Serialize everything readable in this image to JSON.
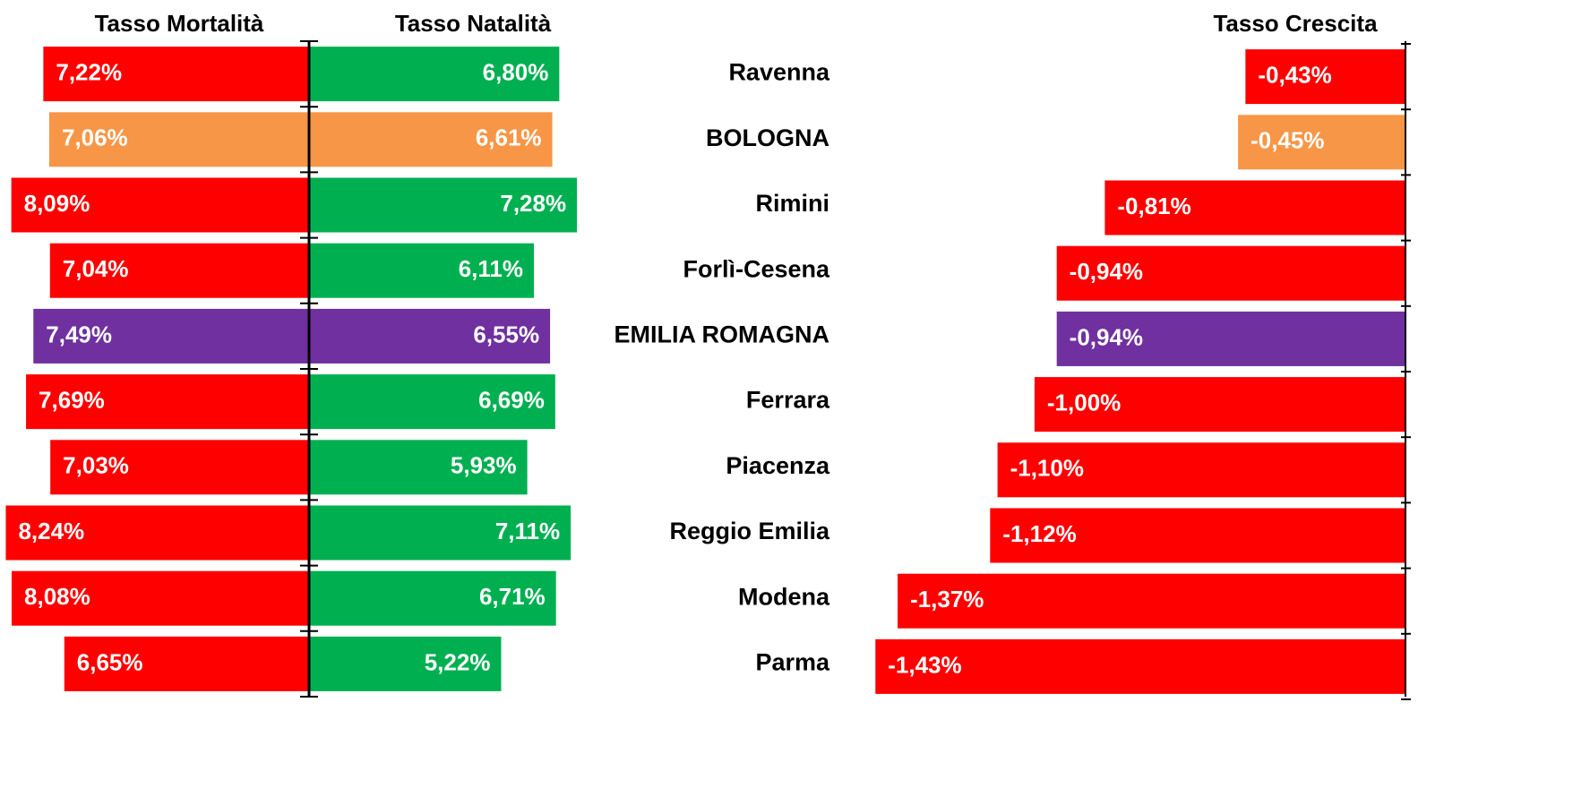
{
  "chart_data": {
    "type": "bar",
    "orientation": "horizontal",
    "categories": [
      "Ravenna",
      "BOLOGNA",
      "Rimini",
      "Forlì-Cesena",
      "EMILIA ROMAGNA",
      "Ferrara",
      "Piacenza",
      "Reggio Emilia",
      "Modena",
      "Parma"
    ],
    "series": [
      {
        "name": "Tasso Mortalità",
        "direction": "left",
        "xlim": [
          0,
          8.3
        ],
        "values": [
          7.22,
          7.06,
          8.09,
          7.04,
          7.49,
          7.69,
          7.03,
          8.24,
          8.08,
          6.65
        ],
        "value_labels": [
          "7,22%",
          "7,06%",
          "8,09%",
          "7,04%",
          "7,49%",
          "7,69%",
          "7,03%",
          "8,24%",
          "8,08%",
          "6,65%"
        ],
        "colors": [
          "#ff0000",
          "#f79646",
          "#ff0000",
          "#ff0000",
          "#7030a0",
          "#ff0000",
          "#ff0000",
          "#ff0000",
          "#ff0000",
          "#ff0000"
        ]
      },
      {
        "name": "Tasso Natalità",
        "direction": "right",
        "xlim": [
          0,
          8.3
        ],
        "values": [
          6.8,
          6.61,
          7.28,
          6.11,
          6.55,
          6.69,
          5.93,
          7.11,
          6.71,
          5.22
        ],
        "value_labels": [
          "6,80%",
          "6,61%",
          "7,28%",
          "6,11%",
          "6,55%",
          "6,69%",
          "5,93%",
          "7,11%",
          "6,71%",
          "5,22%"
        ],
        "colors": [
          "#00b050",
          "#f79646",
          "#00b050",
          "#00b050",
          "#7030a0",
          "#00b050",
          "#00b050",
          "#00b050",
          "#00b050",
          "#00b050"
        ]
      },
      {
        "name": "Tasso Crescita",
        "direction": "left",
        "xlim": [
          -1.45,
          0
        ],
        "values": [
          -0.43,
          -0.45,
          -0.81,
          -0.94,
          -0.94,
          -1.0,
          -1.1,
          -1.12,
          -1.37,
          -1.43
        ],
        "value_labels": [
          "-0,43%",
          "-0,45%",
          "-0,81%",
          "-0,94%",
          "-0,94%",
          "-1,00%",
          "-1,10%",
          "-1,12%",
          "-1,37%",
          "-1,43%"
        ],
        "colors": [
          "#ff0000",
          "#f79646",
          "#ff0000",
          "#ff0000",
          "#7030a0",
          "#ff0000",
          "#ff0000",
          "#ff0000",
          "#ff0000",
          "#ff0000"
        ]
      }
    ]
  }
}
